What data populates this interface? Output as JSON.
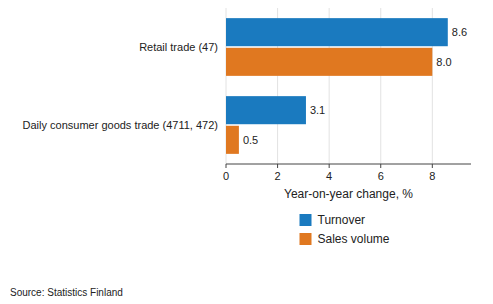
{
  "chart_data": {
    "type": "bar",
    "orientation": "horizontal",
    "categories": [
      "Daily consumer goods trade (4711, 472)",
      "Retail trade (47)"
    ],
    "series": [
      {
        "name": "Turnover",
        "color": "#1a7abf",
        "values": [
          3.1,
          8.6
        ],
        "value_labels": [
          "3.1",
          "8.6"
        ]
      },
      {
        "name": "Sales volume",
        "color": "#e07820",
        "values": [
          0.5,
          8.0
        ],
        "value_labels": [
          "0.5",
          "8.0"
        ]
      }
    ],
    "xlabel": "Year-on-year change, %",
    "xlim": [
      0,
      9.5
    ],
    "xticks": [
      0,
      2,
      4,
      6,
      8
    ],
    "grid": true,
    "data_labels": true,
    "legend": "bottom",
    "annotations": [
      "Source: Statistics Finland"
    ]
  }
}
